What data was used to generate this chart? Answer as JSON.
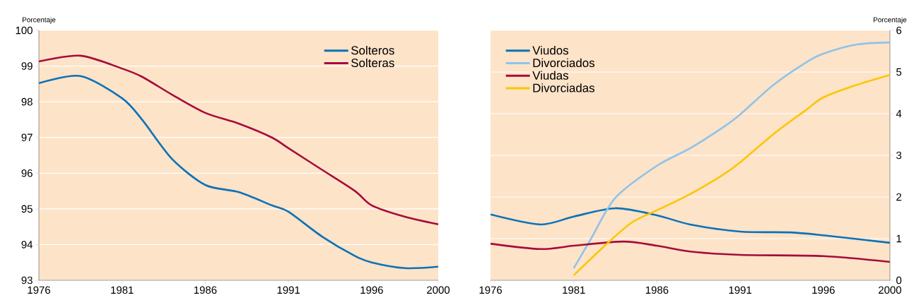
{
  "chart_data": [
    {
      "type": "line",
      "ylabel": "Porcentaje",
      "x": [
        1976,
        1978.5,
        1981,
        1982.2,
        1984,
        1986,
        1988,
        1990,
        1991,
        1993,
        1995,
        1996,
        1998,
        2000
      ],
      "xlim": [
        1976,
        2000
      ],
      "xticks": [
        1976,
        1981,
        1986,
        1991,
        1996,
        2000
      ],
      "ylim": [
        93,
        100
      ],
      "yticks": [
        93,
        94,
        95,
        96,
        97,
        98,
        99,
        100
      ],
      "grid": "y",
      "legend": "top right",
      "series": [
        {
          "name": "Solteros",
          "color": "#0a72b8",
          "values": [
            98.52,
            98.72,
            98.1,
            97.5,
            96.4,
            95.67,
            95.47,
            95.1,
            94.92,
            94.23,
            93.68,
            93.5,
            93.34,
            93.38
          ]
        },
        {
          "name": "Solteras",
          "color": "#a50d3a",
          "values": [
            99.13,
            99.29,
            98.93,
            98.7,
            98.2,
            97.69,
            97.39,
            97.0,
            96.7,
            96.1,
            95.5,
            95.1,
            94.78,
            94.57
          ]
        }
      ]
    },
    {
      "type": "line",
      "ylabel": "Porcentaje",
      "xlim": [
        1976,
        2000
      ],
      "xticks": [
        1976,
        1981,
        1986,
        1991,
        1996,
        2000
      ],
      "ylim": [
        0,
        6
      ],
      "yticks": [
        0,
        1,
        2,
        3,
        4,
        5,
        6
      ],
      "grid": "y",
      "legend": "top left",
      "series": [
        {
          "name": "Viudos",
          "color": "#0a72b8",
          "x": [
            1976,
            1979,
            1981,
            1983.5,
            1986,
            1988,
            1991,
            1994,
            1996,
            2000
          ],
          "values": [
            1.58,
            1.34,
            1.53,
            1.73,
            1.56,
            1.34,
            1.17,
            1.15,
            1.08,
            0.9
          ]
        },
        {
          "name": "Divorciados",
          "color": "#8fc3ea",
          "x": [
            1981,
            1982,
            1983.5,
            1986,
            1988,
            1990,
            1991,
            1993,
            1995,
            1996,
            1998,
            2000
          ],
          "values": [
            0.29,
            0.97,
            1.98,
            2.75,
            3.17,
            3.68,
            3.98,
            4.69,
            5.24,
            5.44,
            5.66,
            5.71
          ]
        },
        {
          "name": "Viudas",
          "color": "#a50d3a",
          "x": [
            1976,
            1979,
            1981,
            1984,
            1986,
            1988,
            1991,
            1996,
            2000
          ],
          "values": [
            0.88,
            0.75,
            0.83,
            0.93,
            0.83,
            0.69,
            0.61,
            0.58,
            0.44
          ]
        },
        {
          "name": "Divorciadas",
          "color": "#fcc600",
          "x": [
            1981,
            1983,
            1984.5,
            1986,
            1988,
            1990,
            1991,
            1993,
            1995,
            1996,
            1998,
            2000
          ],
          "values": [
            0.12,
            0.88,
            1.39,
            1.68,
            2.07,
            2.54,
            2.83,
            3.51,
            4.1,
            4.39,
            4.69,
            4.93
          ]
        }
      ]
    }
  ]
}
